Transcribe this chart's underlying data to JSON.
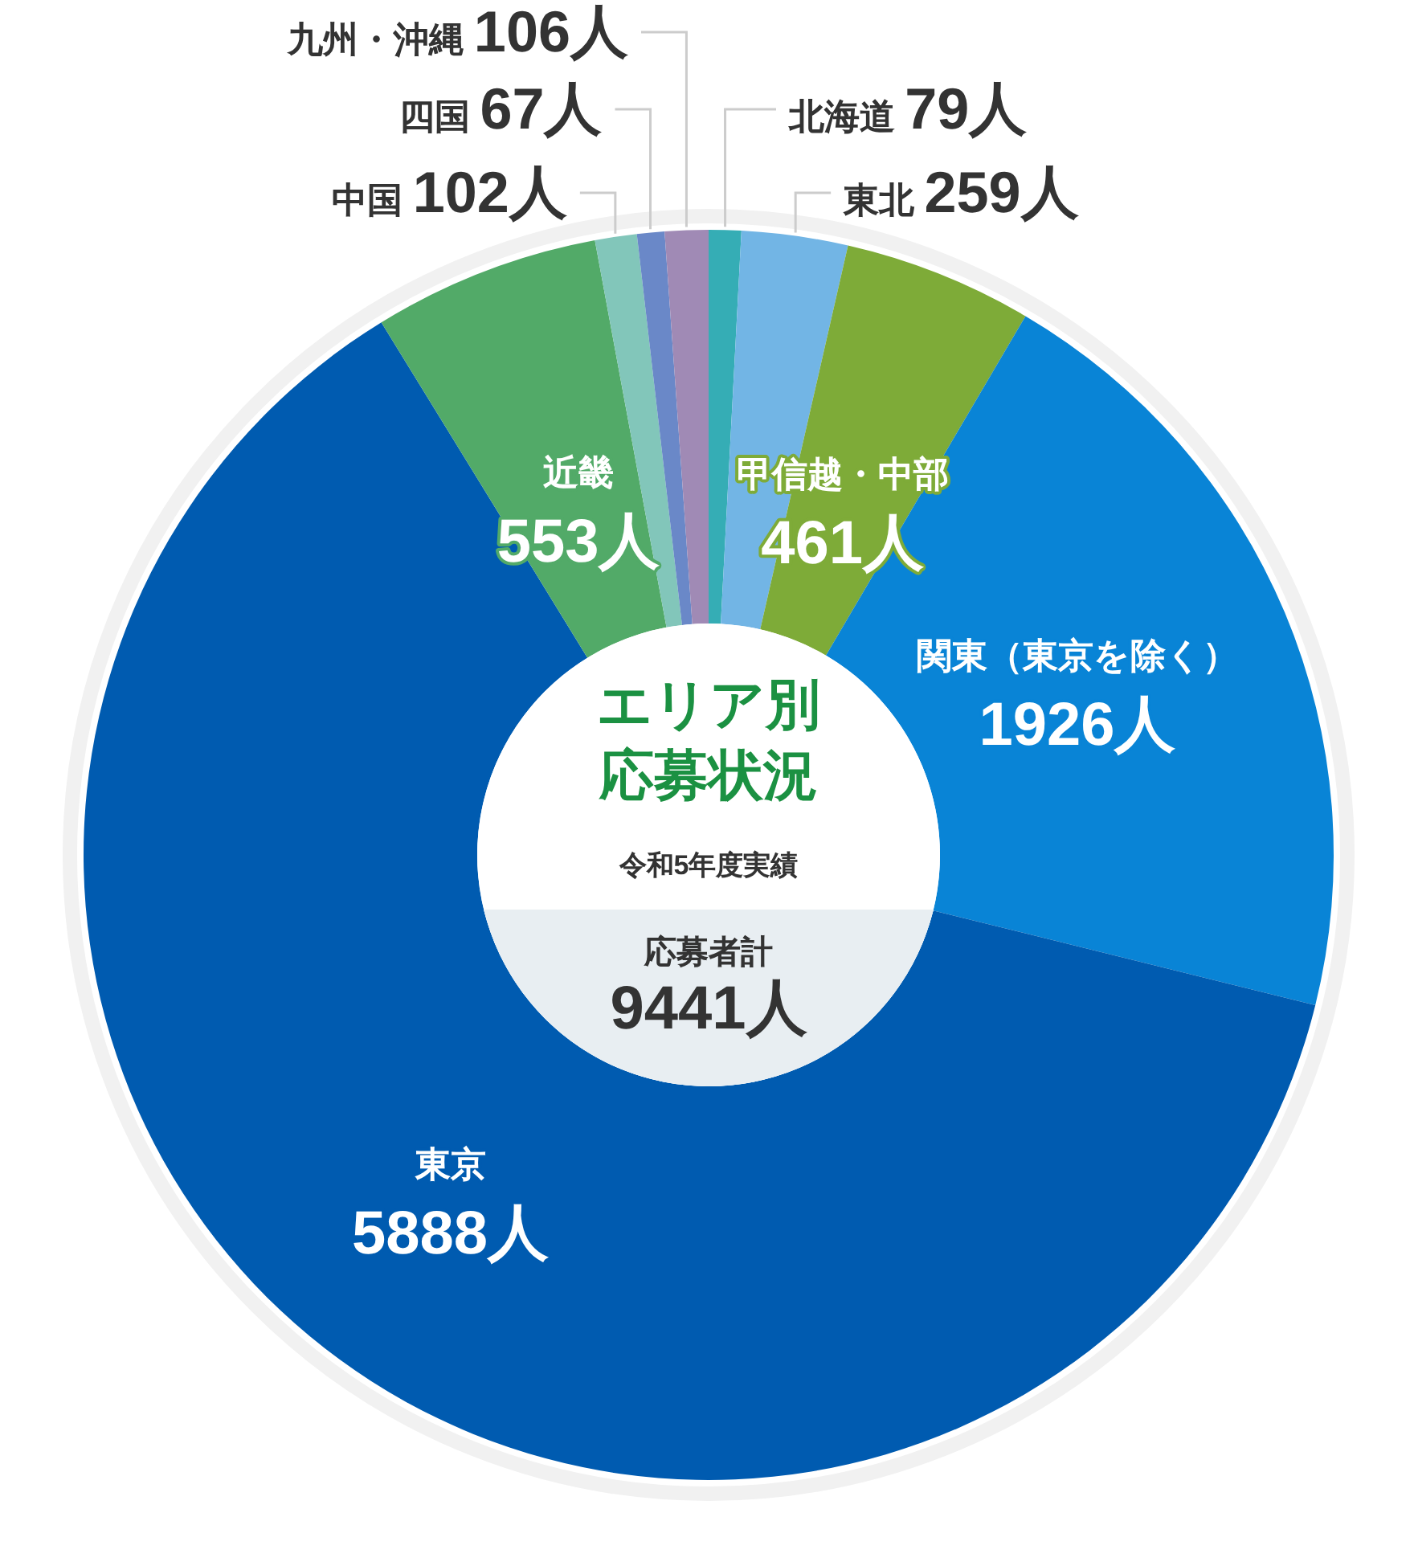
{
  "chart_data": {
    "type": "donut",
    "title": "エリア別応募状況",
    "subtitle": "令和5年度実績",
    "categories": [
      "北海道",
      "東北",
      "甲信越・中部",
      "関東（東京を除く）",
      "東京",
      "近畿",
      "中国",
      "四国",
      "九州・沖縄"
    ],
    "values": [
      79,
      259,
      461,
      1926,
      5888,
      553,
      102,
      67,
      106
    ],
    "value_labels": [
      "79人",
      "259人",
      "461人",
      "1926人",
      "5888人",
      "553人",
      "102人",
      "67人",
      "106人"
    ],
    "colors": [
      "#35adb5",
      "#72b5e5",
      "#7eab38",
      "#0984d6",
      "#005bb0",
      "#52aa68",
      "#82c6ba",
      "#6a88c8",
      "#a08ab5"
    ],
    "annotations": [
      "応募者計",
      "9441人"
    ]
  }
}
